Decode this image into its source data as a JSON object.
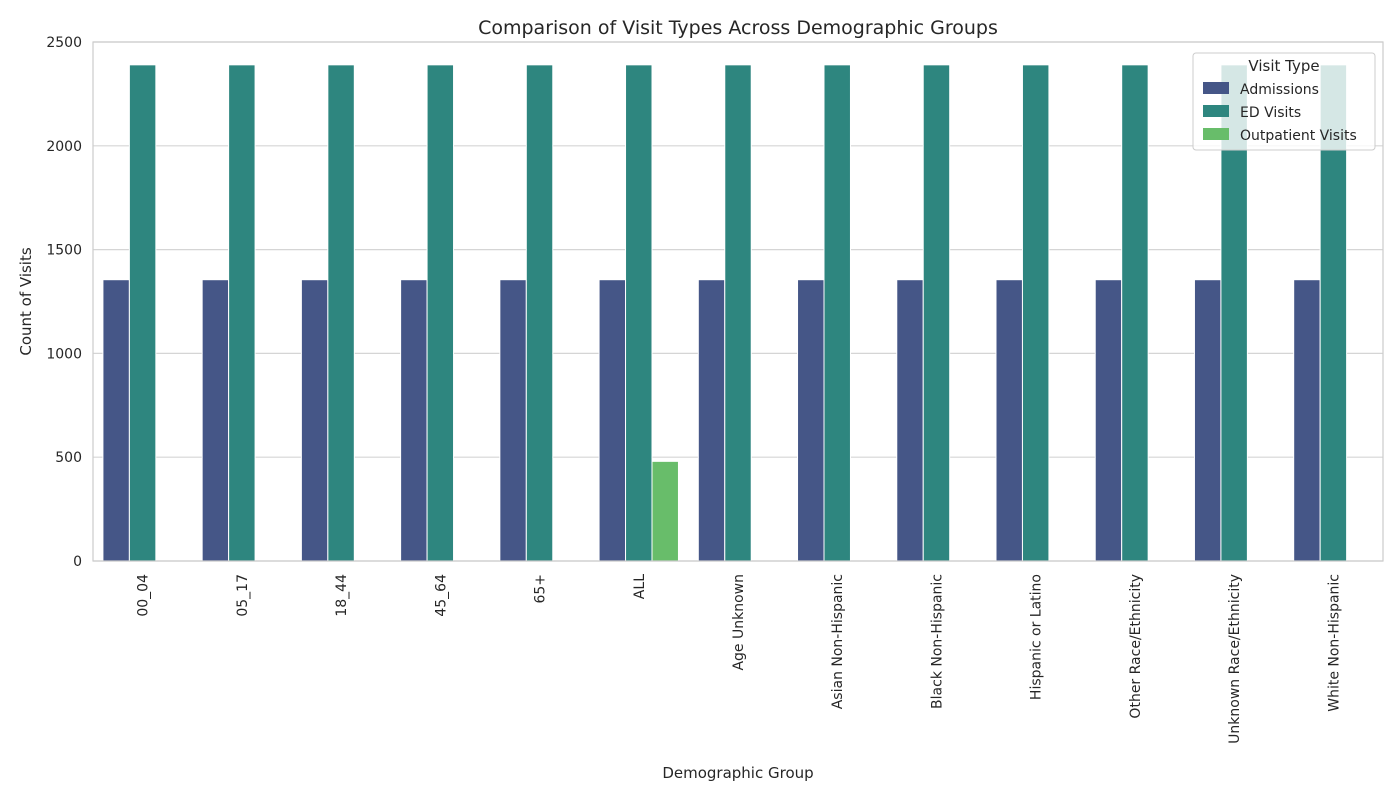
{
  "chart_data": {
    "type": "bar",
    "title": "Comparison of Visit Types Across Demographic Groups",
    "xlabel": "Demographic Group",
    "ylabel": "Count of Visits",
    "ylim": [
      0,
      2500
    ],
    "yticks": [
      0,
      500,
      1000,
      1500,
      2000,
      2500
    ],
    "grid": true,
    "legend": {
      "title": "Visit Type",
      "placement": "top-right"
    },
    "categories": [
      "00_04",
      "05_17",
      "18_44",
      "45_64",
      "65+",
      "ALL",
      "Age Unknown",
      "Asian Non-Hispanic",
      "Black Non-Hispanic",
      "Hispanic or Latino",
      "Other Race/Ethnicity",
      "Unknown Race/Ethnicity",
      "White Non-Hispanic"
    ],
    "series": [
      {
        "name": "Admissions",
        "color": "#455687",
        "values": [
          1355,
          1355,
          1355,
          1355,
          1355,
          1355,
          1355,
          1355,
          1355,
          1355,
          1355,
          1355,
          1355
        ]
      },
      {
        "name": "ED Visits",
        "color": "#2e867f",
        "values": [
          2390,
          2390,
          2390,
          2390,
          2390,
          2390,
          2390,
          2390,
          2390,
          2390,
          2390,
          2390,
          2390
        ]
      },
      {
        "name": "Outpatient Visits",
        "color": "#68bd6a",
        "values": [
          0,
          0,
          0,
          0,
          0,
          480,
          0,
          0,
          0,
          0,
          0,
          0,
          0
        ]
      }
    ]
  }
}
